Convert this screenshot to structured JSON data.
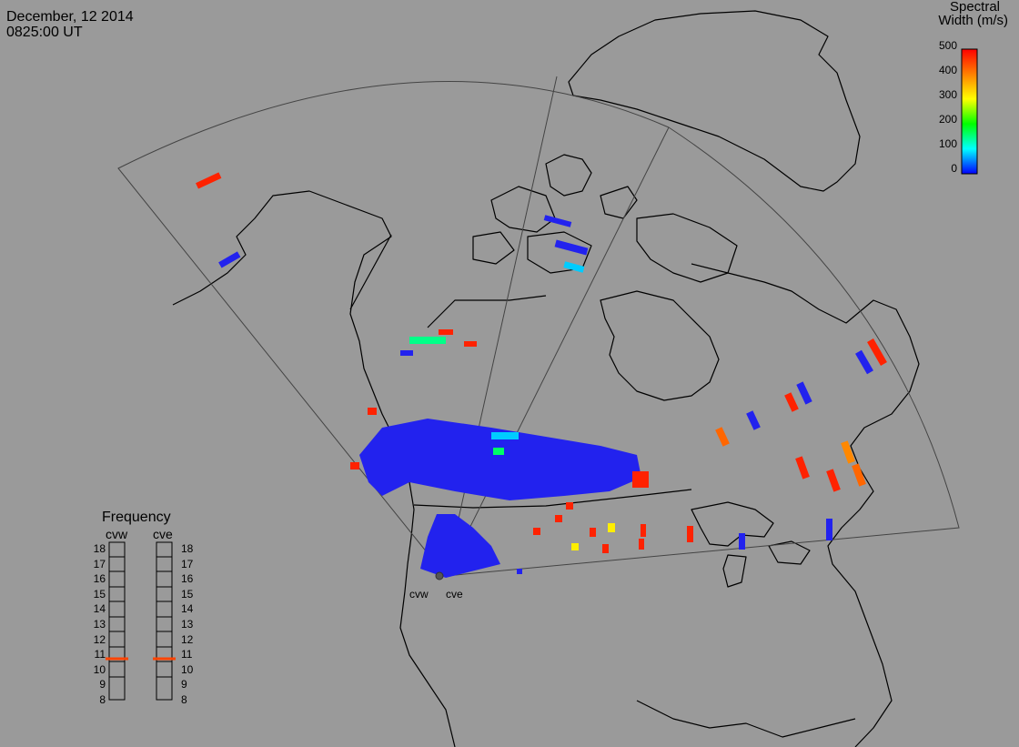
{
  "header": {
    "date": "December, 12 2014",
    "time": "0825:00 UT"
  },
  "colorbar": {
    "title_line1": "Spectral",
    "title_line2": "Width (m/s)",
    "ticks": [
      "500",
      "400",
      "300",
      "200",
      "100",
      "0"
    ],
    "colors": [
      "#ff0000",
      "#ff7f00",
      "#ffff00",
      "#00ff00",
      "#00ffff",
      "#0000ff"
    ]
  },
  "frequency": {
    "title": "Frequency",
    "radar_left": "cvw",
    "radar_right": "cve",
    "scale": [
      "18",
      "17",
      "16",
      "15",
      "14",
      "13",
      "12",
      "11",
      "10",
      "9",
      "8"
    ],
    "cvw_value_mhz": 10.6,
    "cve_value_mhz": 10.6,
    "marker_color": "#ff4400"
  },
  "sites": {
    "left": "cvw",
    "right": "cve"
  },
  "colors": {
    "background": "#9a9a9a",
    "coastline": "#000000",
    "fov": "#444444"
  }
}
